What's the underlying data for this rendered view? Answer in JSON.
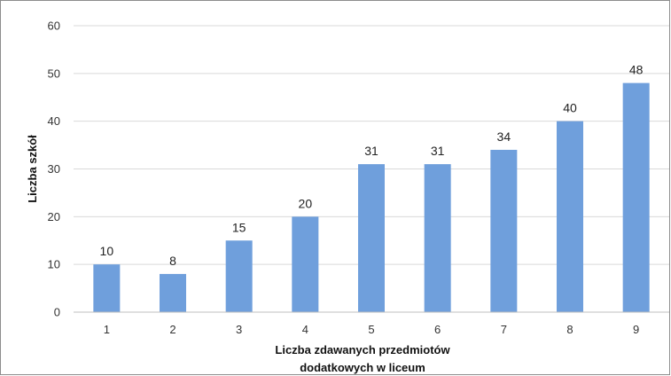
{
  "chart_data": {
    "type": "bar",
    "title": "",
    "xlabel_lines": [
      "Liczba zdawanych przedmiotów",
      "dodatkowych w liceum"
    ],
    "ylabel": "Liczba szkół",
    "categories": [
      "1",
      "2",
      "3",
      "4",
      "5",
      "6",
      "7",
      "8",
      "9"
    ],
    "values": [
      10,
      8,
      15,
      20,
      31,
      31,
      34,
      40,
      48
    ],
    "value_labels": [
      "10",
      "8",
      "15",
      "20",
      "31",
      "31",
      "34",
      "40",
      "48"
    ],
    "ylim": [
      0,
      60
    ],
    "yticks": [
      0,
      10,
      20,
      30,
      40,
      50,
      60
    ],
    "ytick_labels": [
      "0",
      "10",
      "20",
      "30",
      "40",
      "50",
      "60"
    ],
    "grid": true,
    "legend": "none",
    "bar_color": "#6f9fdc",
    "grid_color": "#d9d9d9",
    "axis_color": "#bfbfbf"
  }
}
